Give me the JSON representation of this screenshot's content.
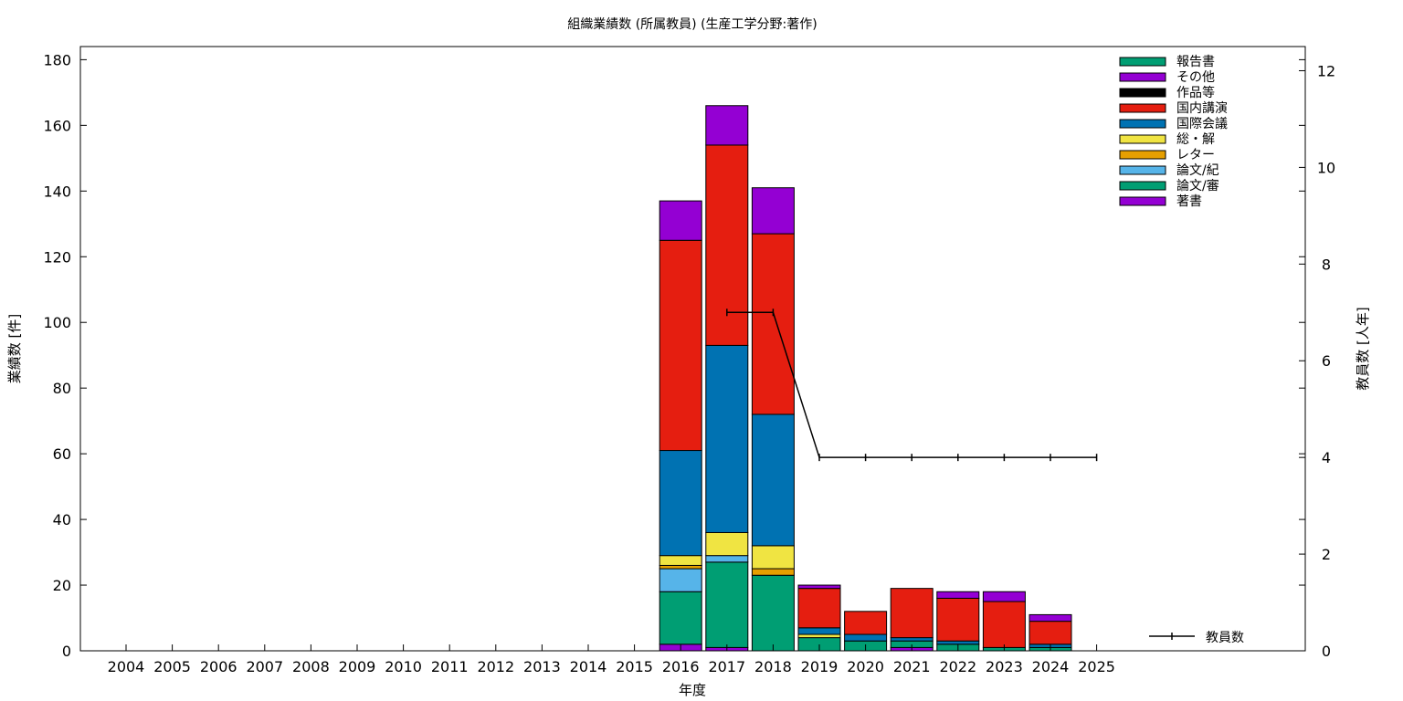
{
  "chart_data": {
    "type": "bar",
    "title": "組織業績数 (所属教員) (生産工学分野:著作)",
    "xlabel": "年度",
    "ylabel": "業績数 [件]",
    "y2label": "教員数 [人年]",
    "ylim": [
      0,
      184
    ],
    "y2lim": [
      0,
      12.5
    ],
    "yticks": [
      "0",
      "20",
      "40",
      "60",
      "80",
      "100",
      "120",
      "140",
      "160",
      "180"
    ],
    "y2ticks": [
      "0",
      "2",
      "4",
      "6",
      "8",
      "10",
      "12"
    ],
    "grid": false,
    "legend_position": "top-right",
    "categories": [
      "2004",
      "2005",
      "2006",
      "2007",
      "2008",
      "2009",
      "2010",
      "2011",
      "2012",
      "2013",
      "2014",
      "2015",
      "2016",
      "2017",
      "2018",
      "2019",
      "2020",
      "2021",
      "2022",
      "2023",
      "2024",
      "2025"
    ],
    "stack_order": [
      "著書",
      "論文/審",
      "論文/紀",
      "レター",
      "総・解",
      "国際会議",
      "国内講演",
      "作品等",
      "その他",
      "報告書"
    ],
    "series": [
      {
        "name": "著書",
        "color": "#9400d3",
        "values": [
          0,
          0,
          0,
          0,
          0,
          0,
          0,
          0,
          0,
          0,
          0,
          0,
          2,
          1,
          0,
          0,
          0,
          1,
          0,
          0,
          0,
          0
        ]
      },
      {
        "name": "論文/審",
        "color": "#009e73",
        "values": [
          0,
          0,
          0,
          0,
          0,
          0,
          0,
          0,
          0,
          0,
          0,
          0,
          16,
          26,
          23,
          4,
          3,
          2,
          2,
          1,
          1,
          0
        ]
      },
      {
        "name": "論文/紀",
        "color": "#56b4e9",
        "values": [
          0,
          0,
          0,
          0,
          0,
          0,
          0,
          0,
          0,
          0,
          0,
          0,
          7,
          2,
          0,
          0,
          0,
          0,
          0,
          0,
          0,
          0
        ]
      },
      {
        "name": "レター",
        "color": "#e69f00",
        "values": [
          0,
          0,
          0,
          0,
          0,
          0,
          0,
          0,
          0,
          0,
          0,
          0,
          1,
          0,
          2,
          0,
          0,
          0,
          0,
          0,
          0,
          0
        ]
      },
      {
        "name": "総・解",
        "color": "#f0e442",
        "values": [
          0,
          0,
          0,
          0,
          0,
          0,
          0,
          0,
          0,
          0,
          0,
          0,
          3,
          7,
          7,
          1,
          0,
          0,
          0,
          0,
          0,
          0
        ]
      },
      {
        "name": "国際会議",
        "color": "#0072b2",
        "values": [
          0,
          0,
          0,
          0,
          0,
          0,
          0,
          0,
          0,
          0,
          0,
          0,
          32,
          57,
          40,
          2,
          2,
          1,
          1,
          0,
          1,
          0
        ]
      },
      {
        "name": "国内講演",
        "color": "#e51e10",
        "values": [
          0,
          0,
          0,
          0,
          0,
          0,
          0,
          0,
          0,
          0,
          0,
          0,
          64,
          61,
          55,
          12,
          7,
          15,
          13,
          14,
          7,
          0
        ]
      },
      {
        "name": "作品等",
        "color": "#000000",
        "values": [
          0,
          0,
          0,
          0,
          0,
          0,
          0,
          0,
          0,
          0,
          0,
          0,
          0,
          0,
          0,
          0,
          0,
          0,
          0,
          0,
          0,
          0
        ]
      },
      {
        "name": "その他",
        "color": "#9400d3",
        "values": [
          0,
          0,
          0,
          0,
          0,
          0,
          0,
          0,
          0,
          0,
          0,
          0,
          12,
          12,
          14,
          1,
          0,
          0,
          2,
          3,
          2,
          0
        ]
      },
      {
        "name": "報告書",
        "color": "#009e73",
        "values": [
          0,
          0,
          0,
          0,
          0,
          0,
          0,
          0,
          0,
          0,
          0,
          0,
          0,
          0,
          0,
          0,
          0,
          0,
          0,
          0,
          0,
          0
        ]
      }
    ],
    "line": {
      "name": "教員数",
      "color": "#000000",
      "x": [
        "2017",
        "2018",
        "2019",
        "2020",
        "2021",
        "2022",
        "2023",
        "2024",
        "2025"
      ],
      "values": [
        7,
        7,
        4,
        4,
        4,
        4,
        4,
        4,
        4
      ]
    }
  }
}
